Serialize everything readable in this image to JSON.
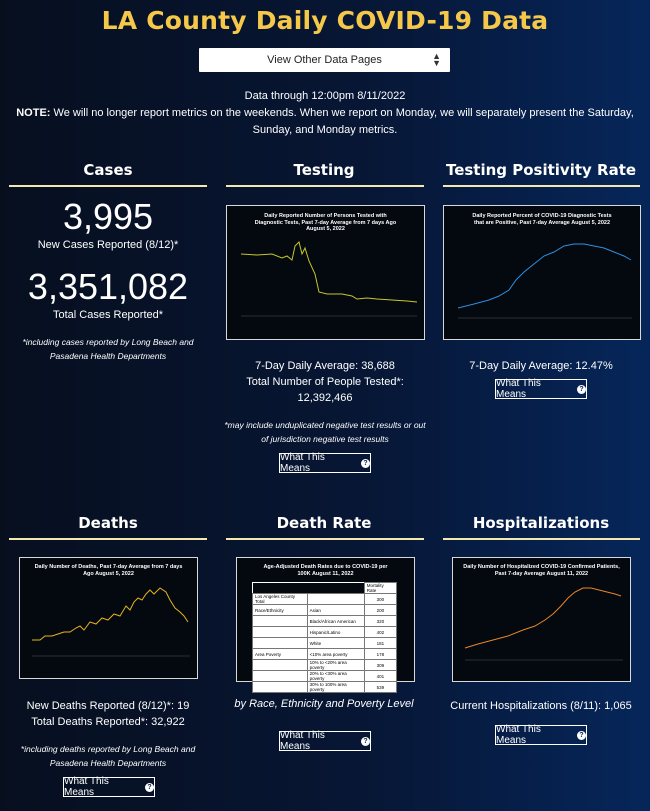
{
  "header": {
    "title": "LA County Daily COVID-19 Data",
    "select_value": "View Other Data Pages",
    "data_through": "Data through 12:00pm 8/11/2022",
    "note_label": "NOTE:",
    "note_text": " We will no longer report metrics on the weekends. When we report on Monday, we will separately present the Saturday, Sunday, and Monday metrics."
  },
  "cases": {
    "title": "Cases",
    "new_value": "3,995",
    "new_label": "New Cases Reported (8/12)*",
    "total_value": "3,351,082",
    "total_label": "Total Cases Reported*",
    "footnote": "*including cases reported by Long Beach and Pasadena Health Departments"
  },
  "testing": {
    "title": "Testing",
    "chart_title": "Daily Reported Number of Persons Tested with Diagnostic Tests, Past 7-day Average from 7 days Ago August 5, 2022",
    "avg": "7-Day Daily Average: 38,688",
    "total_label": "Total Number of People Tested*:",
    "total_value": "12,392,466",
    "footnote": "*may include unduplicated negative test results or out of jurisdiction negative test results",
    "button": "What This Means"
  },
  "positivity": {
    "title": "Testing Positivity Rate",
    "chart_title": "Daily Reported Percent of COVID-19 Diagnostic Tests that are Positive, Past 7-day Average August 5, 2022",
    "avg": "7-Day Daily Average: 12.47%",
    "button": "What This Means"
  },
  "deaths": {
    "title": "Deaths",
    "chart_title": "Daily Number of Deaths, Past 7-day Average from 7 days Ago August 5, 2022",
    "new": "New Deaths Reported (8/12)*: 19",
    "total": "Total Deaths Reported*: 32,922",
    "footnote": "*including deaths reported by Long Beach and Pasadena Health Departments",
    "button": "What This Means"
  },
  "death_rate": {
    "title": "Death Rate",
    "chart_title": "Age-Adjusted Death Rates due to COVID-19 per 100K August 11, 2022",
    "table_header": "Mortality Rate",
    "rows": [
      [
        "Los Angeles County Total",
        "",
        "300"
      ],
      [
        "Race/Ethnicity",
        "Asian",
        "200"
      ],
      [
        "",
        "Black/African American",
        "320"
      ],
      [
        "",
        "Hispanic/Latino",
        "402"
      ],
      [
        "",
        "White",
        "181"
      ],
      [
        "Area Poverty",
        "<10% area poverty",
        "178"
      ],
      [
        "",
        "10% to <20% area poverty",
        "309"
      ],
      [
        "",
        "20% to <30% area poverty",
        "401"
      ],
      [
        "",
        "30% to 100% area poverty",
        "539"
      ]
    ],
    "caption": "by Race, Ethnicity and Poverty Level",
    "button": "What This Means"
  },
  "hosp": {
    "title": "Hospitalizations",
    "chart_title": "Daily Number of Hospitalized COVID-19 Confirmed Patients, Past 7-day Average August 11, 2022",
    "current": "Current Hospitalizations (8/11): 1,065",
    "button": "What This Means"
  },
  "colors": {
    "accent": "#f6c84a",
    "testing_line": "#c6c82a",
    "positivity_line": "#2f8fe0",
    "deaths_line": "#e6b320",
    "hosp_line": "#e8862a"
  }
}
